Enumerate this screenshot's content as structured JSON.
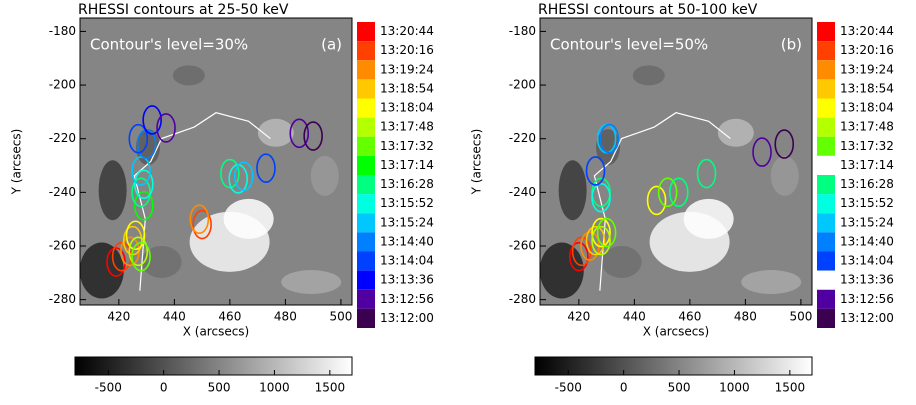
{
  "chart_data": [
    {
      "type": "scatter",
      "title": "RHESSI contours at 25-50 keV",
      "annotation": "Contour's level=30%",
      "panel_label": "(a)",
      "xlabel": "X (arcsecs)",
      "ylabel": "Y (arcsecs)",
      "xlim": [
        406,
        504
      ],
      "ylim": [
        -282,
        -175
      ],
      "xticks": [
        420,
        440,
        460,
        480,
        500
      ],
      "yticks": [
        -180,
        -200,
        -220,
        -240,
        -260,
        -280
      ],
      "colorbar": {
        "lim": [
          -800,
          1700
        ],
        "ticks": [
          -500,
          0,
          500,
          1000,
          1500
        ]
      },
      "series": [
        {
          "name": "13:20:44",
          "color": "#ff0000",
          "x": [
            419
          ],
          "y": [
            -266
          ]
        },
        {
          "name": "13:20:16",
          "color": "#ff4000",
          "x": [
            421,
            450
          ],
          "y": [
            -264,
            -252
          ]
        },
        {
          "name": "13:19:24",
          "color": "#ff8c00",
          "x": [
            424,
            449
          ],
          "y": [
            -262,
            -250
          ]
        },
        {
          "name": "13:18:54",
          "color": "#ffc800",
          "x": [
            425
          ],
          "y": [
            -258
          ]
        },
        {
          "name": "13:18:04",
          "color": "#ffff00",
          "x": [
            426
          ],
          "y": [
            -256
          ]
        },
        {
          "name": "13:17:48",
          "color": "#b4ff00",
          "x": [
            427
          ],
          "y": [
            -262
          ]
        },
        {
          "name": "13:17:32",
          "color": "#64ff00",
          "x": [
            428
          ],
          "y": [
            -264
          ]
        },
        {
          "name": "13:17:14",
          "color": "#00ff00",
          "x": [
            429
          ],
          "y": [
            -245
          ]
        },
        {
          "name": "13:16:28",
          "color": "#00ff80",
          "x": [
            428,
            460
          ],
          "y": [
            -240,
            -233
          ]
        },
        {
          "name": "13:15:52",
          "color": "#00ffe0",
          "x": [
            429,
            463
          ],
          "y": [
            -237,
            -235
          ]
        },
        {
          "name": "13:15:24",
          "color": "#00c8ff",
          "x": [
            428,
            465
          ],
          "y": [
            -232,
            -234
          ]
        },
        {
          "name": "13:14:40",
          "color": "#0080ff",
          "x": [
            430
          ],
          "y": [
            -222
          ]
        },
        {
          "name": "13:14:04",
          "color": "#0040ff",
          "x": [
            427,
            473
          ],
          "y": [
            -220,
            -231
          ]
        },
        {
          "name": "13:13:36",
          "color": "#0000ff",
          "x": [
            432
          ],
          "y": [
            -213
          ]
        },
        {
          "name": "13:12:56",
          "color": "#5000a0",
          "x": [
            437,
            485
          ],
          "y": [
            -216,
            -218
          ]
        },
        {
          "name": "13:12:00",
          "color": "#3c0050",
          "x": [
            490
          ],
          "y": [
            -219
          ]
        }
      ]
    },
    {
      "type": "scatter",
      "title": "RHESSI contours at 50-100 keV",
      "annotation": "Contour's level=50%",
      "panel_label": "(b)",
      "xlabel": "X (arcsecs)",
      "ylabel": "Y (arcsecs)",
      "xlim": [
        406,
        504
      ],
      "ylim": [
        -282,
        -175
      ],
      "xticks": [
        420,
        440,
        460,
        480,
        500
      ],
      "yticks": [
        -180,
        -200,
        -220,
        -240,
        -260,
        -280
      ],
      "colorbar": {
        "lim": [
          -800,
          1700
        ],
        "ticks": [
          -500,
          0,
          500,
          1000,
          1500
        ]
      },
      "series": [
        {
          "name": "13:20:44",
          "color": "#ff0000",
          "x": [
            420
          ],
          "y": [
            -264
          ]
        },
        {
          "name": "13:20:16",
          "color": "#ff4000",
          "x": [
            421
          ],
          "y": [
            -262
          ]
        },
        {
          "name": "13:19:24",
          "color": "#ff8c00",
          "x": [
            424
          ],
          "y": [
            -260
          ]
        },
        {
          "name": "13:18:54",
          "color": "#ffc800",
          "x": [
            426
          ],
          "y": [
            -258
          ]
        },
        {
          "name": "13:18:04",
          "color": "#ffff00",
          "x": [
            428,
            448
          ],
          "y": [
            -255,
            -243
          ]
        },
        {
          "name": "13:17:48",
          "color": "#b4ff00",
          "x": [
            428
          ],
          "y": [
            -258
          ]
        },
        {
          "name": "13:17:32",
          "color": "#64ff00",
          "x": [
            430,
            452
          ],
          "y": [
            -255,
            -240
          ]
        },
        {
          "name": "13:17:14",
          "color": "#ffffff",
          "x": [],
          "y": []
        },
        {
          "name": "13:16:28",
          "color": "#00ff80",
          "x": [
            428,
            456,
            466
          ],
          "y": [
            -240,
            -240,
            -233
          ]
        },
        {
          "name": "13:15:52",
          "color": "#00ffe0",
          "x": [
            428
          ],
          "y": [
            -242
          ]
        },
        {
          "name": "13:15:24",
          "color": "#00c8ff",
          "x": [
            430
          ],
          "y": [
            -220
          ]
        },
        {
          "name": "13:14:40",
          "color": "#0080ff",
          "x": [
            431
          ],
          "y": [
            -220
          ]
        },
        {
          "name": "13:14:04",
          "color": "#0040ff",
          "x": [
            426
          ],
          "y": [
            -232
          ]
        },
        {
          "name": "13:13:36",
          "color": "#ffffff",
          "x": [],
          "y": []
        },
        {
          "name": "13:12:56",
          "color": "#5000a0",
          "x": [
            486
          ],
          "y": [
            -225
          ]
        },
        {
          "name": "13:12:00",
          "color": "#3c0050",
          "x": [
            494
          ],
          "y": [
            -222
          ]
        }
      ]
    }
  ]
}
